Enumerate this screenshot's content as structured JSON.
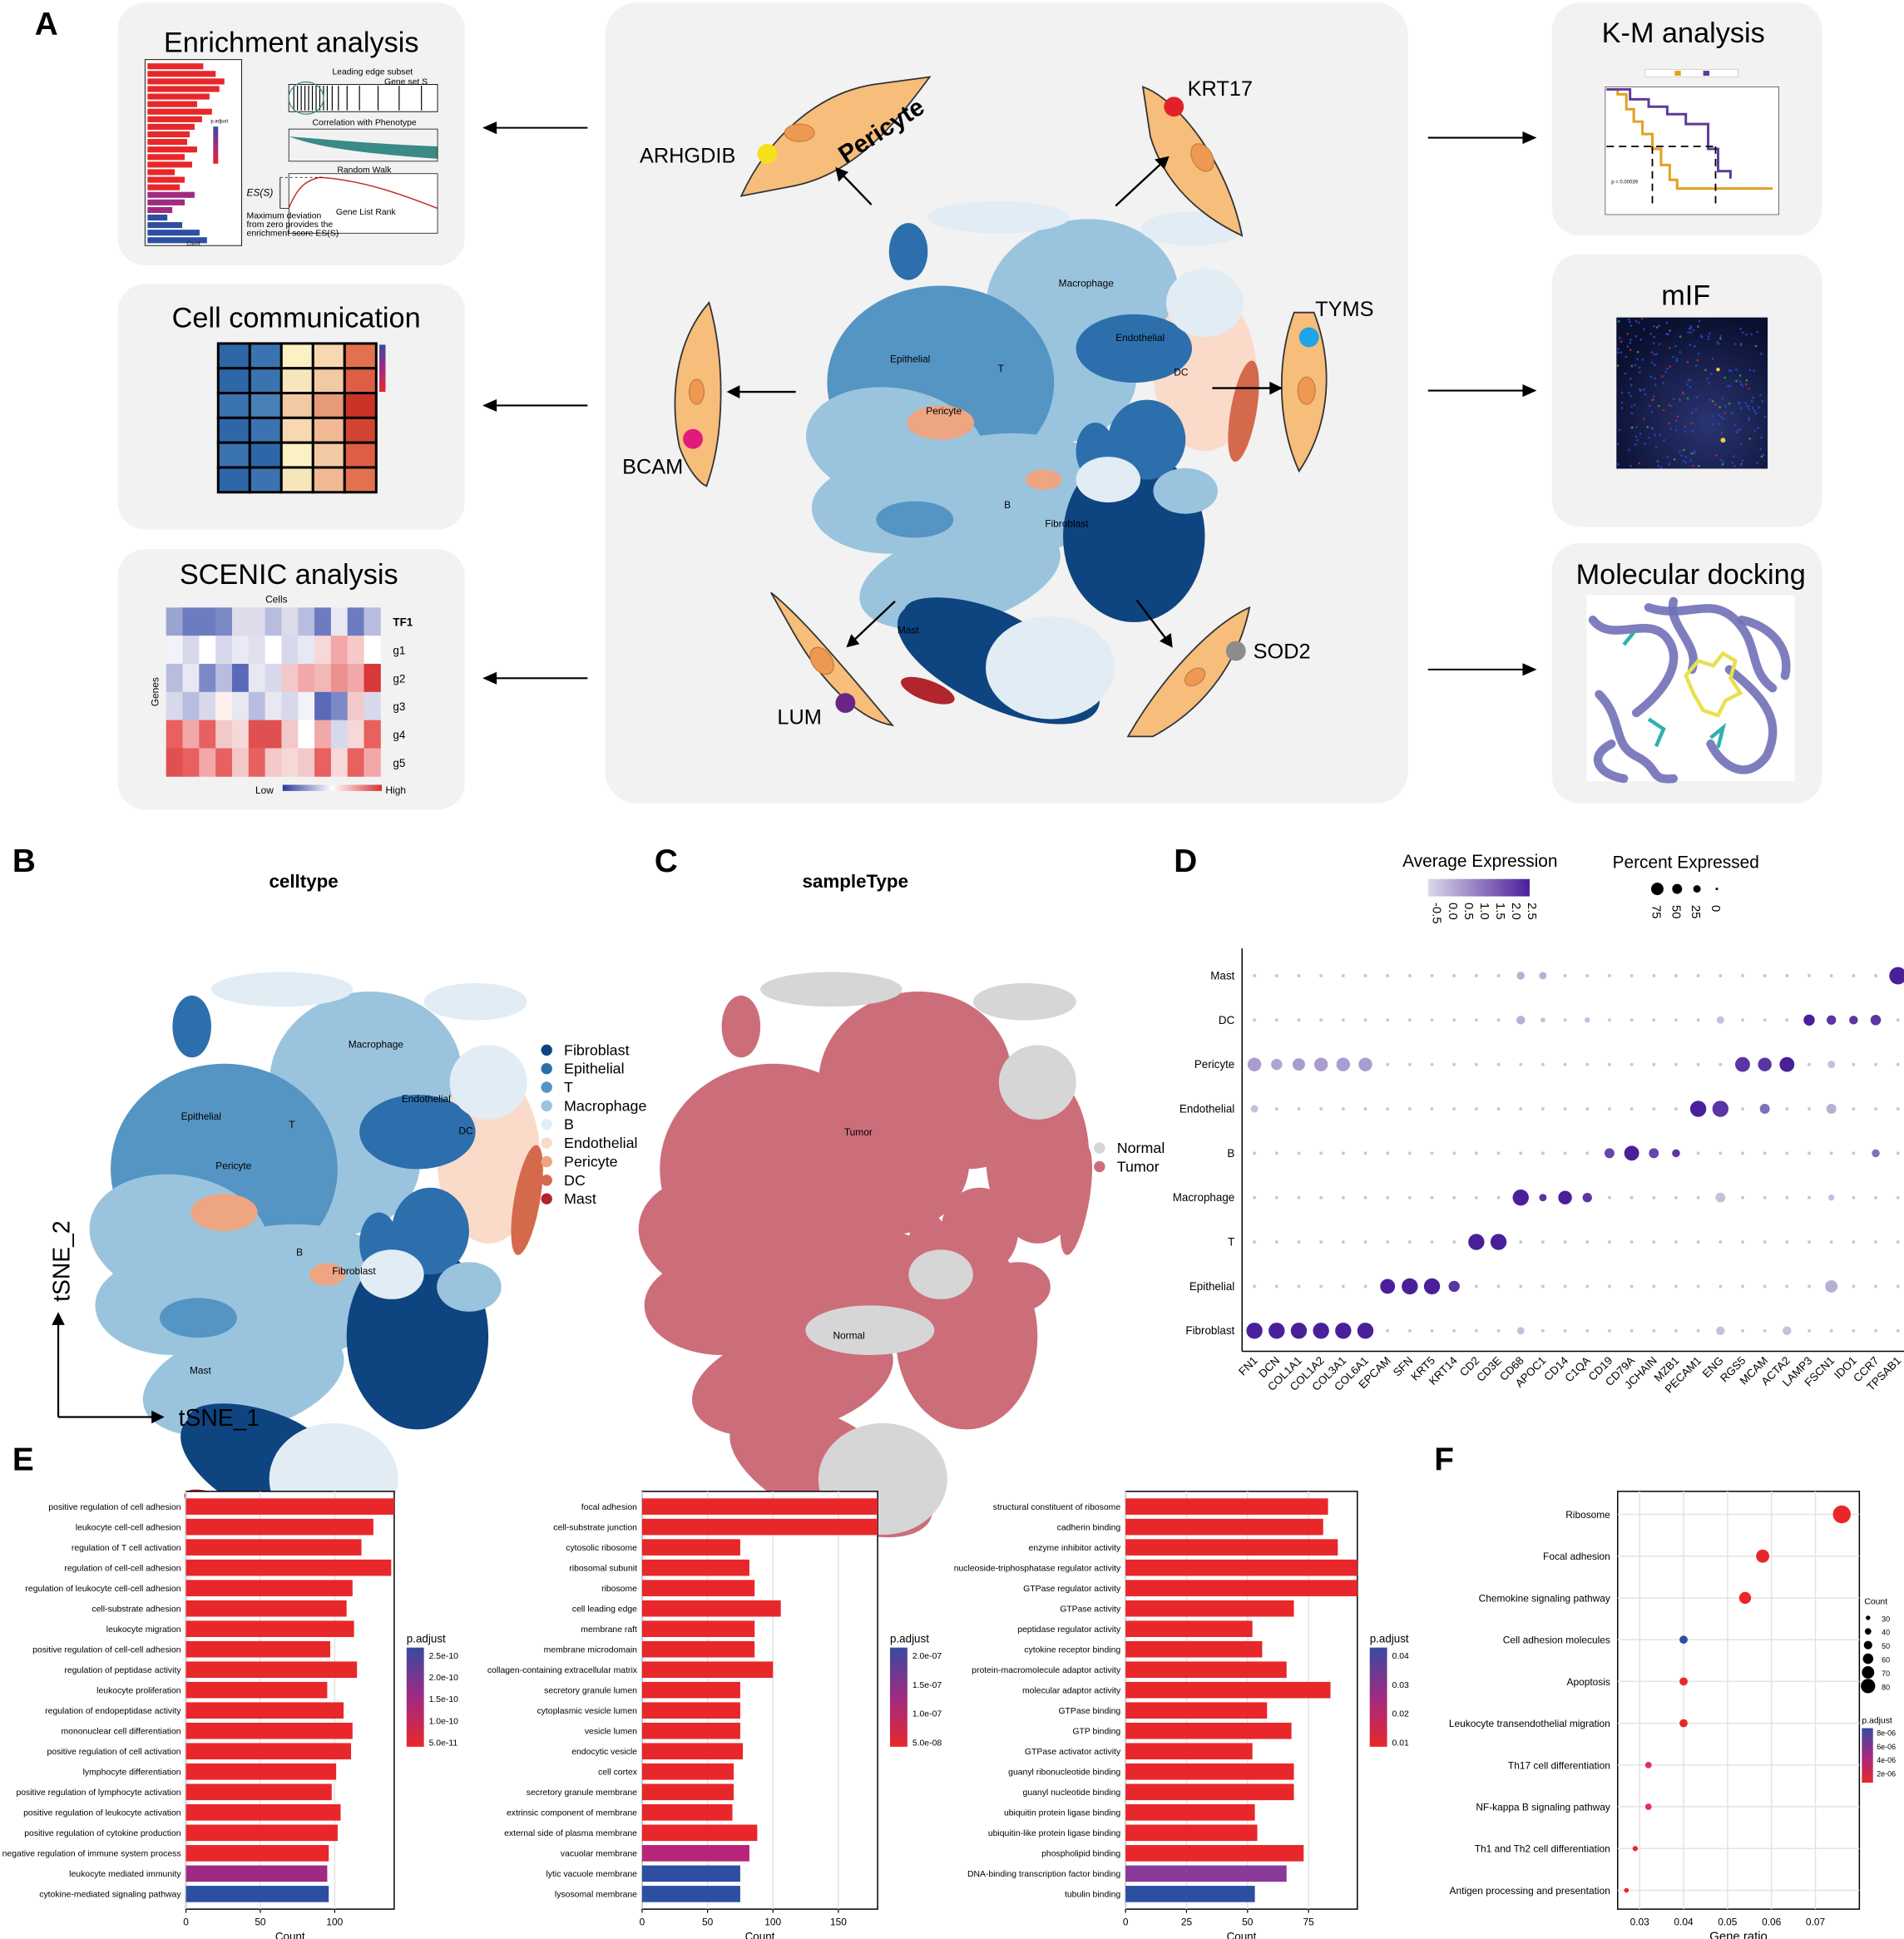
{
  "panels": {
    "A": "A",
    "B": "B",
    "C": "C",
    "D": "D",
    "E": "E",
    "F": "F"
  },
  "panelA": {
    "left_boxes": [
      "Enrichment analysis",
      "Cell communication",
      "SCENIC analysis"
    ],
    "right_boxes": [
      "K-M analysis",
      "mIF",
      "Molecular docking"
    ],
    "gsea": {
      "leading_edge": "Leading edge subset",
      "gene_set": "Gene set S",
      "correlation": "Correlation with Phenotype",
      "random_walk": "Random Walk",
      "es": "ES(S)",
      "gene_list_rank": "Gene List Rank",
      "max_dev_1": "Maximum deviation",
      "max_dev_2": "from zero provides the",
      "max_dev_3": "enrichment score ES(S)",
      "padjust": "p.adjust",
      "count": "Count"
    },
    "scenic": {
      "cells": "Cells",
      "genes": "Genes",
      "rows": [
        "TF1",
        "g1",
        "g2",
        "g3",
        "g4",
        "g5"
      ],
      "low": "Low",
      "high": "High"
    },
    "km": {
      "pvalue": "p = 0.00039"
    },
    "genes": [
      "KRT17",
      "TYMS",
      "SOD2",
      "LUM",
      "BCAM",
      "ARHGDIB"
    ],
    "pericyte_label": "Pericyte",
    "clusters": {
      "macrophage": "Macrophage",
      "endothelial": "Endothelial",
      "dc": "DC",
      "epithelial": "Epithelial",
      "t": "T",
      "pericyte": "Pericyte",
      "b": "B",
      "fibroblast": "Fibroblast",
      "mast": "Mast"
    },
    "colors": {
      "dot_krt17": "#e3202a",
      "dot_tyms": "#20a3e8",
      "dot_sod2": "#8c8c8c",
      "dot_lum": "#6a2584",
      "dot_bcam": "#e3197c",
      "dot_arhgdib": "#f5e11b",
      "cell_fill": "#f6bd7b",
      "box_bg": "#f2f2f2"
    }
  },
  "panelB": {
    "title": "celltype",
    "legend": [
      "Fibroblast",
      "Epithelial",
      "T",
      "Macrophage",
      "B",
      "Endothelial",
      "Pericyte",
      "DC",
      "Mast"
    ],
    "legend_colors": [
      "#0e4480",
      "#2c6fac",
      "#5595c3",
      "#9ac4de",
      "#e1ecf4",
      "#fadbc9",
      "#eda582",
      "#d5694c",
      "#b0262c"
    ],
    "axis_x": "tSNE_1",
    "axis_y": "tSNE_2"
  },
  "panelC": {
    "title": "sampleType",
    "legend": [
      "Normal",
      "Tumor"
    ],
    "legend_colors": [
      "#d6d6d6",
      "#cc6e7a"
    ],
    "tumor_label": "Tumor",
    "normal_label": "Normal"
  },
  "panelD": {
    "avg_expr_title": "Average Expression",
    "pct_title": "Percent Expressed",
    "avg_ticks": [
      "-0.5",
      "0.0",
      "0.5",
      "1.0",
      "1.5",
      "2.0",
      "2.5"
    ],
    "pct_ticks": [
      "75",
      "50",
      "25",
      "0"
    ],
    "genes": [
      "FN1",
      "DCN",
      "COL1A1",
      "COL1A2",
      "COL3A1",
      "COL6A1",
      "EPCAM",
      "SFN",
      "KRT5",
      "KRT14",
      "CD2",
      "CD3E",
      "CD68",
      "APOC1",
      "CD14",
      "C1QA",
      "CD19",
      "CD79A",
      "JCHAIN",
      "MZB1",
      "PECAM1",
      "ENG",
      "RGS5",
      "MCAM",
      "ACTA2",
      "LAMP3",
      "FSCN1",
      "IDO1",
      "CCR7",
      "TPSAB1"
    ],
    "celltypes": [
      "Mast",
      "DC",
      "Pericyte",
      "Endothelial",
      "B",
      "Macrophage",
      "T",
      "Epithelial",
      "Fibroblast"
    ]
  },
  "chart_data": [
    {
      "type": "bar",
      "orientation": "horizontal",
      "panel": "E1",
      "xlabel": "Count",
      "xlim": [
        0,
        140
      ],
      "xticks": [
        "0",
        "50",
        "100"
      ],
      "legend_title": "p.adjust",
      "legend_ticks": [
        "2.5e-10",
        "2.0e-10",
        "1.5e-10",
        "1.0e-10",
        "5.0e-11"
      ],
      "categories": [
        "positive regulation of cell adhesion",
        "leukocyte cell-cell adhesion",
        "regulation of T cell activation",
        "regulation of cell-cell adhesion",
        "regulation of leukocyte cell-cell adhesion",
        "cell-substrate adhesion",
        "leukocyte migration",
        "positive regulation of cell-cell adhesion",
        "regulation of peptidase activity",
        "leukocyte proliferation",
        "regulation of endopeptidase activity",
        "mononuclear cell differentiation",
        "positive regulation of cell activation",
        "lymphocyte differentiation",
        "positive regulation of lymphocyte activation",
        "positive regulation of leukocyte activation",
        "positive regulation of cytokine production",
        "negative regulation of immune system process",
        "leukocyte mediated immunity",
        "cytokine-mediated signaling pathway"
      ],
      "values": [
        140,
        126,
        118,
        138,
        112,
        108,
        113,
        97,
        115,
        95,
        106,
        112,
        111,
        101,
        98,
        104,
        102,
        96,
        95,
        96
      ],
      "colors": [
        "#e8272a",
        "#e8272a",
        "#e8272a",
        "#e8272a",
        "#e8272a",
        "#e8272a",
        "#e8272a",
        "#e8272a",
        "#e8272a",
        "#e8272a",
        "#e8272a",
        "#e8272a",
        "#e8272a",
        "#e8272a",
        "#e8272a",
        "#e8272a",
        "#e8272a",
        "#e8272a",
        "#a02a82",
        "#2d4fa2"
      ]
    },
    {
      "type": "bar",
      "orientation": "horizontal",
      "panel": "E2",
      "xlabel": "Count",
      "xlim": [
        0,
        180
      ],
      "xticks": [
        "0",
        "50",
        "100",
        "150"
      ],
      "legend_title": "p.adjust",
      "legend_ticks": [
        "2.0e-07",
        "1.5e-07",
        "1.0e-07",
        "5.0e-08"
      ],
      "categories": [
        "focal adhesion",
        "cell-substrate junction",
        "cytosolic ribosome",
        "ribosomal subunit",
        "ribosome",
        "cell leading edge",
        "membrane raft",
        "membrane microdomain",
        "collagen-containing extracellular matrix",
        "secretory granule lumen",
        "cytoplasmic vesicle lumen",
        "vesicle lumen",
        "endocytic vesicle",
        "cell cortex",
        "secretory granule membrane",
        "extrinsic component of membrane",
        "external side of plasma membrane",
        "vacuolar membrane",
        "lytic vacuole membrane",
        "lysosomal membrane"
      ],
      "values": [
        180,
        180,
        75,
        82,
        86,
        106,
        86,
        86,
        100,
        75,
        75,
        75,
        77,
        70,
        70,
        69,
        88,
        82,
        75,
        75
      ],
      "colors": [
        "#e8272a",
        "#e8272a",
        "#e8272a",
        "#e8272a",
        "#e8272a",
        "#e8272a",
        "#e8272a",
        "#e8272a",
        "#e8272a",
        "#e8272a",
        "#e8272a",
        "#e8272a",
        "#e8272a",
        "#e8272a",
        "#e8272a",
        "#e8272a",
        "#e8272a",
        "#b62578",
        "#2d4fa2",
        "#2d4fa2"
      ]
    },
    {
      "type": "bar",
      "orientation": "horizontal",
      "panel": "E3",
      "xlabel": "Count",
      "xlim": [
        0,
        95
      ],
      "xticks": [
        "0",
        "25",
        "50",
        "75"
      ],
      "legend_title": "p.adjust",
      "legend_ticks": [
        "0.04",
        "0.03",
        "0.02",
        "0.01"
      ],
      "categories": [
        "structural constituent of ribosome",
        "cadherin binding",
        "enzyme inhibitor activity",
        "nucleoside-triphosphatase regulator activity",
        "GTPase regulator activity",
        "GTPase activity",
        "peptidase regulator activity",
        "cytokine receptor binding",
        "protein-macromolecule adaptor activity",
        "molecular adaptor activity",
        "GTPase binding",
        "GTP binding",
        "GTPase activator activity",
        "guanyl ribonucleotide binding",
        "guanyl nucleotide binding",
        "ubiquitin protein ligase binding",
        "ubiquitin-like protein ligase binding",
        "phospholipid binding",
        "DNA-binding transcription factor binding",
        "tubulin binding"
      ],
      "values": [
        83,
        81,
        87,
        95,
        95,
        69,
        52,
        56,
        66,
        84,
        58,
        68,
        52,
        69,
        69,
        53,
        54,
        73,
        66,
        53
      ],
      "colors": [
        "#e8272a",
        "#e8272a",
        "#e8272a",
        "#e8272a",
        "#e8272a",
        "#e8272a",
        "#e8272a",
        "#e8272a",
        "#e8272a",
        "#e8272a",
        "#e8272a",
        "#e8272a",
        "#e8272a",
        "#e8272a",
        "#e8272a",
        "#e8272a",
        "#e8272a",
        "#e8272a",
        "#8a3a98",
        "#2d4fa2"
      ]
    },
    {
      "type": "scatter",
      "panel": "F",
      "xlabel": "Gene ratio",
      "xlim": [
        0.025,
        0.08
      ],
      "xticks": [
        "0.03",
        "0.04",
        "0.05",
        "0.06",
        "0.07"
      ],
      "size_title": "Count",
      "size_ticks": [
        "30",
        "40",
        "50",
        "60",
        "70",
        "80"
      ],
      "color_title": "p.adjust",
      "color_ticks": [
        "8e-06",
        "6e-06",
        "4e-06",
        "2e-06"
      ],
      "categories": [
        "Ribosome",
        "Focal adhesion",
        "Chemokine signaling pathway",
        "Cell adhesion molecules",
        "Apoptosis",
        "Leukocyte transendothelial migration",
        "Th17 cell differentiation",
        "NF-kappa B signaling pathway",
        "Th1 and Th2 cell differentiation",
        "Antigen processing and presentation"
      ],
      "x": [
        0.076,
        0.058,
        0.054,
        0.04,
        0.04,
        0.04,
        0.032,
        0.032,
        0.029,
        0.027
      ],
      "sizes": [
        82,
        63,
        58,
        43,
        43,
        43,
        36,
        36,
        31,
        29
      ],
      "colors": [
        "#e8272a",
        "#e8272a",
        "#e8272a",
        "#2d4fa2",
        "#e8272a",
        "#e8272a",
        "#e03060",
        "#e03060",
        "#e8272a",
        "#e8272a"
      ]
    }
  ]
}
